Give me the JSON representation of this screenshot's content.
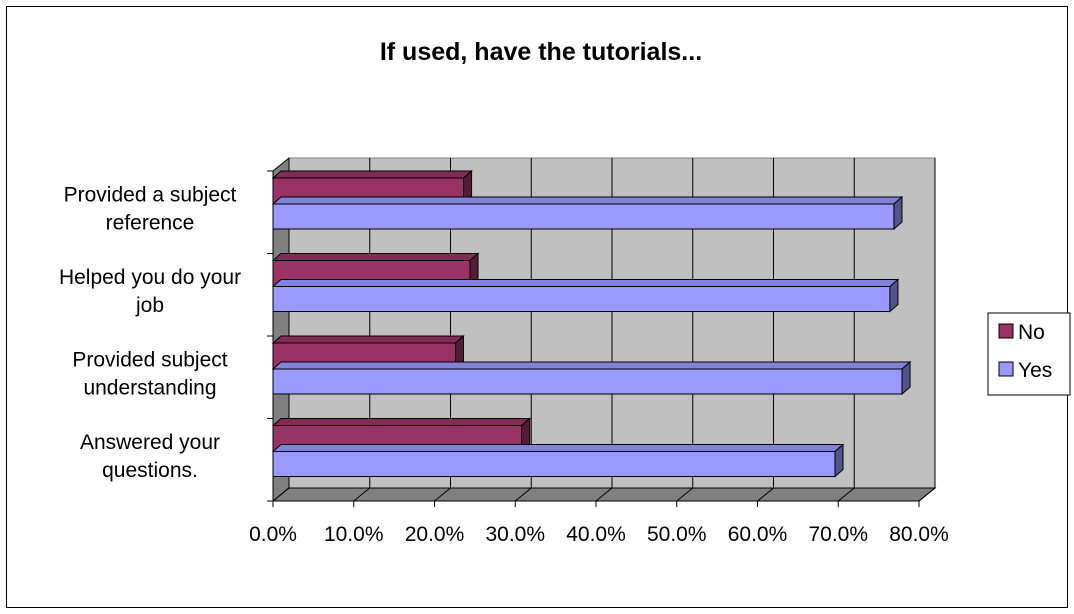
{
  "chart_data": {
    "type": "bar",
    "orientation": "horizontal",
    "style": "3d-clustered",
    "title": "If used, have the tutorials...",
    "categories": [
      "Answered your questions.",
      "Provided subject understanding",
      "Helped you do your job",
      "Provided a subject reference"
    ],
    "category_lines": [
      [
        "Answered your",
        "questions."
      ],
      [
        "Provided subject",
        "understanding"
      ],
      [
        "Helped you do your",
        "job"
      ],
      [
        "Provided a subject",
        "reference"
      ]
    ],
    "series": [
      {
        "name": "No",
        "color": "#993366",
        "values": [
          30.8,
          22.6,
          24.4,
          23.6
        ]
      },
      {
        "name": "Yes",
        "color": "#9999FF",
        "values": [
          69.6,
          77.9,
          76.4,
          76.9
        ]
      }
    ],
    "xlim": [
      0,
      80
    ],
    "x_ticks": [
      0,
      10,
      20,
      30,
      40,
      50,
      60,
      70,
      80
    ],
    "x_tick_labels": [
      "0.0%",
      "10.0%",
      "20.0%",
      "30.0%",
      "40.0%",
      "50.0%",
      "60.0%",
      "70.0%",
      "80.0%"
    ],
    "grid": true,
    "plot_background": "#C0C0C0",
    "legend": {
      "position": "right",
      "entries": [
        "No",
        "Yes"
      ]
    }
  }
}
